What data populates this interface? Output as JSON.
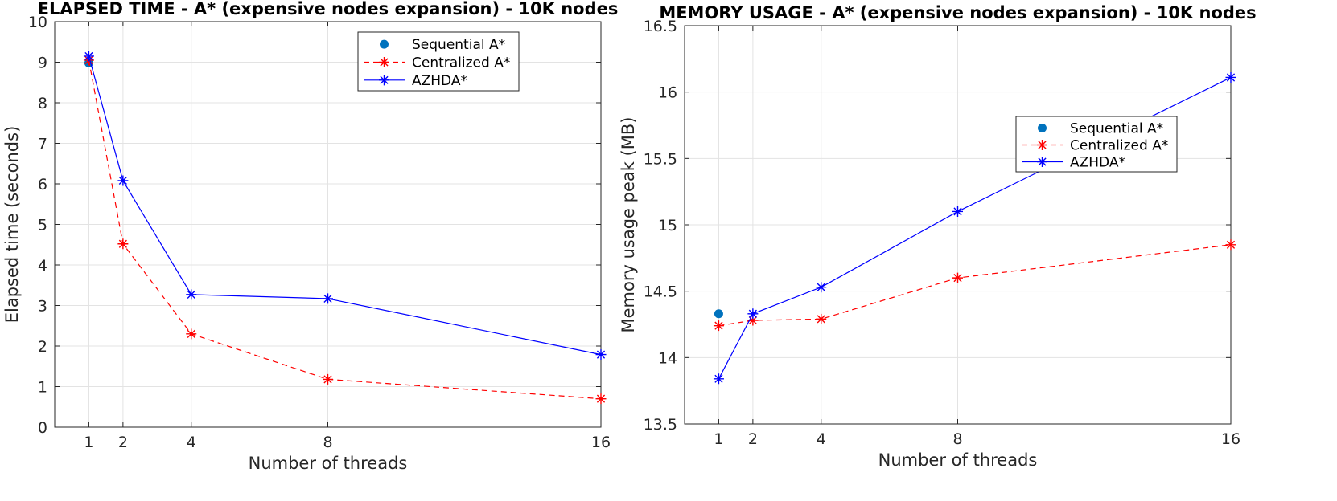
{
  "chart_data": [
    {
      "type": "line",
      "title": "ELAPSED TIME - A* (expensive nodes expansion) - 10K nodes",
      "xlabel": "Number of threads",
      "ylabel": "Elapsed time (seconds)",
      "xlim": [
        0,
        16
      ],
      "ylim": [
        0,
        10
      ],
      "xticks": [
        1,
        2,
        4,
        8,
        16
      ],
      "yticks": [
        0,
        1,
        2,
        3,
        4,
        5,
        6,
        7,
        8,
        9,
        10
      ],
      "grid": true,
      "legend_position": "top-right",
      "series": [
        {
          "name": "Sequential A*",
          "style": "dot",
          "color": "#0072bd",
          "x": [
            1
          ],
          "y": [
            8.98
          ]
        },
        {
          "name": "Centralized A*",
          "style": "dashed-star",
          "color": "#ff0000",
          "x": [
            1,
            2,
            4,
            8,
            16
          ],
          "y": [
            9.05,
            4.52,
            2.3,
            1.18,
            0.7
          ]
        },
        {
          "name": "AZHDA*",
          "style": "solid-star",
          "color": "#0000ff",
          "x": [
            1,
            2,
            4,
            8,
            16
          ],
          "y": [
            9.15,
            6.08,
            3.27,
            3.17,
            1.79
          ]
        }
      ]
    },
    {
      "type": "line",
      "title": "MEMORY USAGE - A* (expensive nodes expansion) - 10K nodes",
      "xlabel": "Number of threads",
      "ylabel": "Memory usage peak (MB)",
      "xlim": [
        0,
        16
      ],
      "ylim": [
        13.5,
        16.5
      ],
      "xticks": [
        1,
        2,
        4,
        8,
        16
      ],
      "yticks": [
        13.5,
        14,
        14.5,
        15,
        15.5,
        16,
        16.5
      ],
      "grid": true,
      "legend_position": "right",
      "series": [
        {
          "name": "Sequential A*",
          "style": "dot",
          "color": "#0072bd",
          "x": [
            1
          ],
          "y": [
            14.33
          ]
        },
        {
          "name": "Centralized A*",
          "style": "dashed-star",
          "color": "#ff0000",
          "x": [
            1,
            2,
            4,
            8,
            16
          ],
          "y": [
            14.24,
            14.28,
            14.29,
            14.6,
            14.85
          ]
        },
        {
          "name": "AZHDA*",
          "style": "solid-star",
          "color": "#0000ff",
          "x": [
            1,
            2,
            4,
            8,
            16
          ],
          "y": [
            13.84,
            14.33,
            14.53,
            15.1,
            16.11
          ]
        }
      ]
    }
  ]
}
